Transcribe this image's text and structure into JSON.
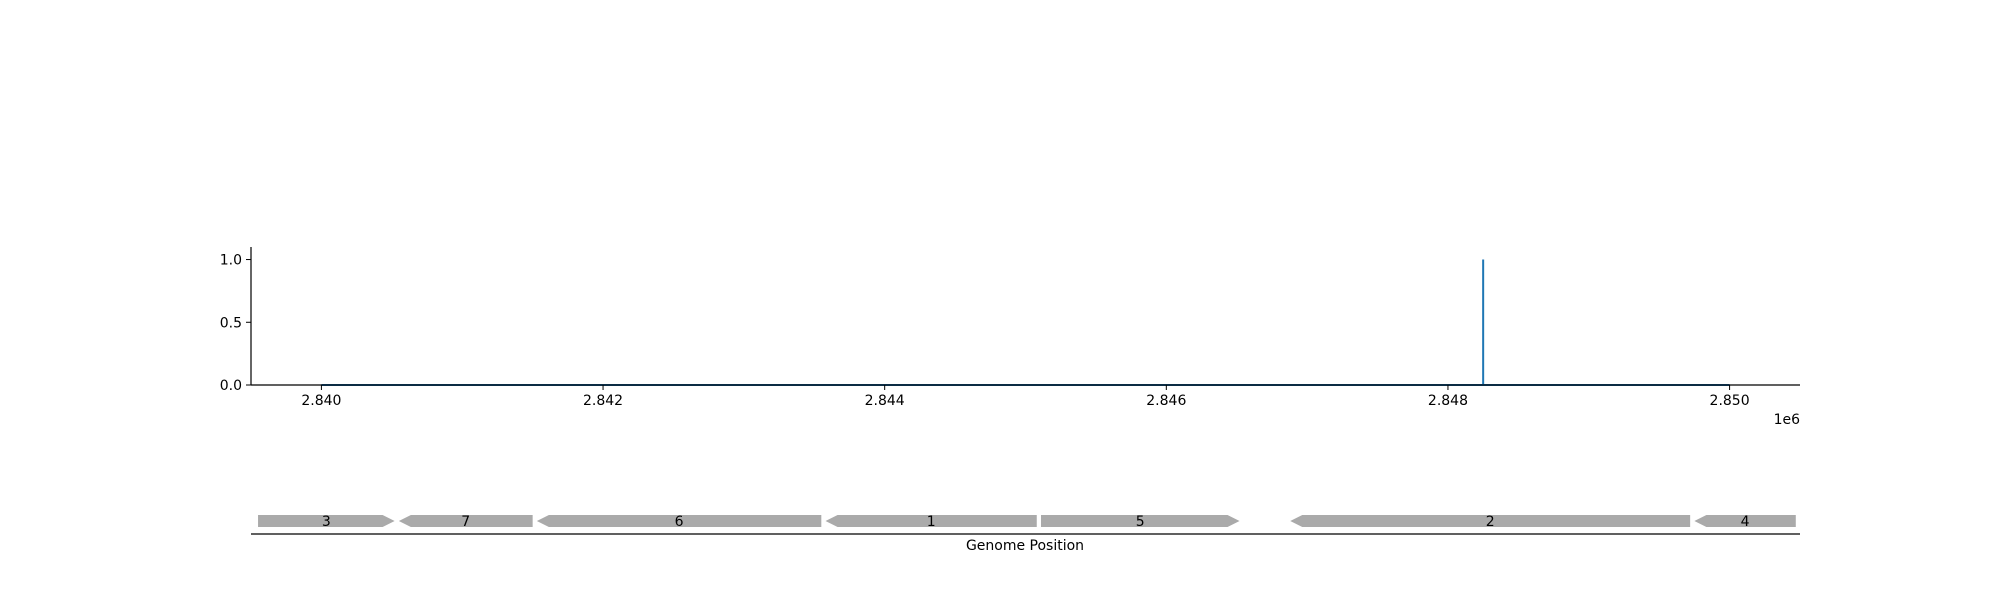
{
  "chart_data": [
    {
      "type": "line",
      "title": "",
      "xlabel": "",
      "ylabel": "",
      "x_offset_label": "1e6",
      "xlim": [
        2.8395,
        2.8505
      ],
      "ylim": [
        0,
        1.1
      ],
      "x_ticks": [
        2.84,
        2.842,
        2.844,
        2.846,
        2.848,
        2.85
      ],
      "x_tick_labels": [
        "2.840",
        "2.842",
        "2.844",
        "2.846",
        "2.848",
        "2.850"
      ],
      "y_ticks": [
        0.0,
        0.5,
        1.0
      ],
      "y_tick_labels": [
        "0.0",
        "0.5",
        "1.0"
      ],
      "series": [
        {
          "color": "#1f77b4",
          "x": [
            2.84,
            2.84825,
            2.84825,
            2.84825,
            2.85
          ],
          "y": [
            0,
            0,
            1.0,
            0,
            0
          ]
        }
      ],
      "grid": false
    },
    {
      "type": "gene-track",
      "xlabel": "Genome Position",
      "xlim": [
        2.8395,
        2.8505
      ],
      "genes": [
        {
          "label": "3",
          "start": 2.83955,
          "end": 2.84052,
          "strand": "+"
        },
        {
          "label": "7",
          "start": 2.84055,
          "end": 2.8415,
          "strand": "-"
        },
        {
          "label": "6",
          "start": 2.84153,
          "end": 2.84355,
          "strand": "-"
        },
        {
          "label": "1",
          "start": 2.84358,
          "end": 2.84508,
          "strand": "-"
        },
        {
          "label": "5",
          "start": 2.84511,
          "end": 2.84652,
          "strand": "+"
        },
        {
          "label": "2",
          "start": 2.84688,
          "end": 2.84972,
          "strand": "-"
        },
        {
          "label": "4",
          "start": 2.84975,
          "end": 2.85047,
          "strand": "-"
        }
      ],
      "gene_color": "#aaaaaa"
    }
  ]
}
